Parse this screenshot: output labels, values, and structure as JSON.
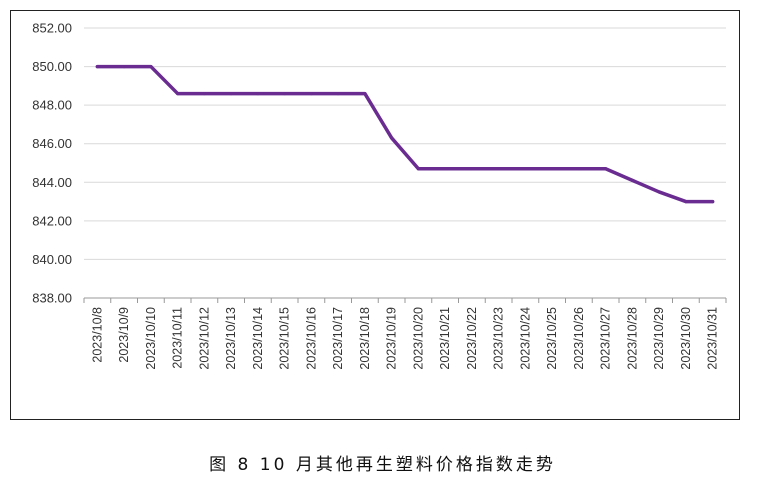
{
  "caption": "图 8  10 月其他再生塑料价格指数走势",
  "colors": {
    "line": "#6a2c91",
    "grid": "#d9d9d9",
    "axis": "#999999"
  },
  "chart_data": {
    "type": "line",
    "title": "",
    "xlabel": "",
    "ylabel": "",
    "ylim": [
      838,
      852
    ],
    "yticks": [
      "838.00",
      "840.00",
      "842.00",
      "844.00",
      "846.00",
      "848.00",
      "850.00",
      "852.00"
    ],
    "grid": "horizontal",
    "categories": [
      "2023/10/8",
      "2023/10/9",
      "2023/10/10",
      "2023/10/11",
      "2023/10/12",
      "2023/10/13",
      "2023/10/14",
      "2023/10/15",
      "2023/10/16",
      "2023/10/17",
      "2023/10/18",
      "2023/10/19",
      "2023/10/20",
      "2023/10/21",
      "2023/10/22",
      "2023/10/23",
      "2023/10/24",
      "2023/10/25",
      "2023/10/26",
      "2023/10/27",
      "2023/10/28",
      "2023/10/29",
      "2023/10/30",
      "2023/10/31"
    ],
    "series": [
      {
        "values": [
          850.0,
          850.0,
          850.0,
          848.6,
          848.6,
          848.6,
          848.6,
          848.6,
          848.6,
          848.6,
          848.6,
          846.3,
          844.7,
          844.7,
          844.7,
          844.7,
          844.7,
          844.7,
          844.7,
          844.7,
          844.1,
          843.5,
          843.0,
          843.0
        ]
      }
    ]
  }
}
